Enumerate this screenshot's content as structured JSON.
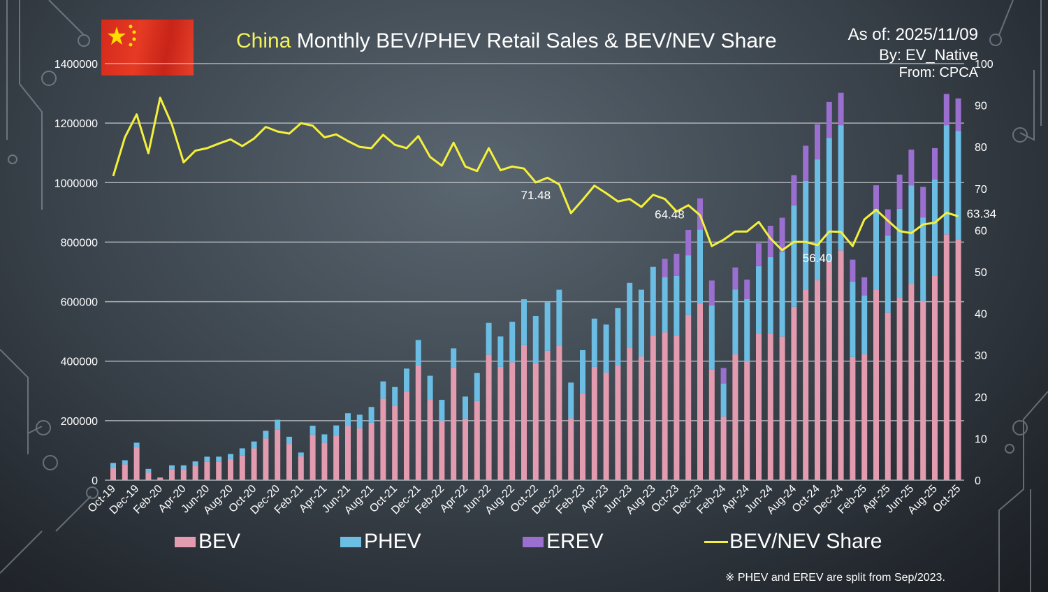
{
  "header": {
    "title_highlight": "China",
    "title_rest": " Monthly BEV/PHEV Retail Sales & BEV/NEV Share",
    "as_of": "As of: 2025/11/09",
    "by": "By: EV_Native",
    "from": "From: CPCA"
  },
  "flag": {
    "name": "china-flag"
  },
  "legend": {
    "bev": "BEV",
    "phev": "PHEV",
    "erev": "EREV",
    "share": "BEV/NEV Share"
  },
  "footnote": "※ PHEV and EREV are split from Sep/2023.",
  "colors": {
    "bev": "#e39bb0",
    "phev": "#6bbde3",
    "erev": "#9b6fd0",
    "share": "#f4f03c",
    "title_highlight": "#f2f25a"
  },
  "chart_data": {
    "type": "bar",
    "stacked": true,
    "title": "China Monthly BEV/PHEV Retail Sales & BEV/NEV Share",
    "left_axis": {
      "ylim": [
        0,
        1400000
      ],
      "ticks": [
        "0",
        "200000",
        "400000",
        "600000",
        "800000",
        "1000000",
        "1200000",
        "1400000"
      ]
    },
    "right_axis": {
      "ylim": [
        0,
        100
      ],
      "ticks": [
        "0",
        "10",
        "20",
        "30",
        "40",
        "50",
        "60",
        "70",
        "80",
        "90",
        "100"
      ]
    },
    "grid": true,
    "legend_position": "bottom",
    "categories": [
      "Oct-19",
      "Nov-19",
      "Dec-19",
      "Jan-20",
      "Feb-20",
      "Mar-20",
      "Apr-20",
      "May-20",
      "Jun-20",
      "Jul-20",
      "Aug-20",
      "Sep-20",
      "Oct-20",
      "Nov-20",
      "Dec-20",
      "Jan-21",
      "Feb-21",
      "Mar-21",
      "Apr-21",
      "May-21",
      "Jun-21",
      "Jul-21",
      "Aug-21",
      "Sep-21",
      "Oct-21",
      "Nov-21",
      "Dec-21",
      "Jan-22",
      "Feb-22",
      "Mar-22",
      "Apr-22",
      "May-22",
      "Jun-22",
      "Jul-22",
      "Aug-22",
      "Sep-22",
      "Oct-22",
      "Nov-22",
      "Dec-22",
      "Jan-23",
      "Feb-23",
      "Mar-23",
      "Apr-23",
      "May-23",
      "Jun-23",
      "Jul-23",
      "Aug-23",
      "Sep-23",
      "Oct-23",
      "Nov-23",
      "Dec-23",
      "Jan-24",
      "Feb-24",
      "Mar-24",
      "Apr-24",
      "May-24",
      "Jun-24",
      "Jul-24",
      "Aug-24",
      "Sep-24",
      "Oct-24",
      "Nov-24",
      "Dec-24",
      "Jan-25",
      "Feb-25",
      "Mar-25",
      "Apr-25",
      "May-25",
      "Jun-25",
      "Jul-25",
      "Aug-25",
      "Sep-25",
      "Oct-25"
    ],
    "series": [
      {
        "name": "BEV",
        "axis": "left",
        "values": [
          41000,
          53000,
          111000,
          26000,
          7000,
          37000,
          37000,
          47000,
          62000,
          62000,
          71000,
          84000,
          107000,
          140000,
          171000,
          122000,
          80000,
          153000,
          126000,
          150000,
          182000,
          174000,
          193000,
          274000,
          250000,
          297000,
          387000,
          270000,
          200000,
          379000,
          207000,
          266000,
          422000,
          381000,
          396000,
          454000,
          392000,
          435000,
          452000,
          208000,
          291000,
          381000,
          362000,
          387000,
          446000,
          416000,
          487000,
          497000,
          487000,
          555000,
          594000,
          373000,
          214000,
          423000,
          400000,
          493000,
          493000,
          483000,
          583000,
          640000,
          672000,
          735000,
          772000,
          414000,
          423000,
          641000,
          563000,
          613000,
          659000,
          602000,
          688000,
          826000,
          809000
        ]
      },
      {
        "name": "PHEV",
        "axis": "left",
        "values": [
          17000,
          14000,
          15000,
          12000,
          2000,
          13000,
          13000,
          16000,
          17000,
          17000,
          17000,
          23000,
          23000,
          26000,
          32000,
          24000,
          13000,
          30000,
          28000,
          34000,
          43000,
          46000,
          53000,
          58000,
          63000,
          78000,
          84000,
          81000,
          70000,
          64000,
          74000,
          94000,
          107000,
          102000,
          136000,
          154000,
          160000,
          163000,
          188000,
          120000,
          146000,
          162000,
          161000,
          191000,
          217000,
          224000,
          230000,
          186000,
          199000,
          201000,
          248000,
          214000,
          111000,
          218000,
          209000,
          226000,
          257000,
          284000,
          340000,
          366000,
          406000,
          415000,
          421000,
          253000,
          198000,
          271000,
          259000,
          299000,
          332000,
          281000,
          323000,
          367000,
          365000
        ]
      },
      {
        "name": "EREV",
        "axis": "left",
        "values": [
          null,
          null,
          null,
          null,
          null,
          null,
          null,
          null,
          null,
          null,
          null,
          null,
          null,
          null,
          null,
          null,
          null,
          null,
          null,
          null,
          null,
          null,
          null,
          null,
          null,
          null,
          null,
          null,
          null,
          null,
          null,
          null,
          null,
          null,
          null,
          null,
          null,
          null,
          null,
          null,
          null,
          null,
          null,
          null,
          null,
          null,
          null,
          61000,
          75000,
          85000,
          105000,
          84000,
          52000,
          74000,
          65000,
          77000,
          105000,
          115000,
          102000,
          118000,
          118000,
          121000,
          109000,
          74000,
          61000,
          79000,
          88000,
          115000,
          120000,
          103000,
          105000,
          105000,
          109000
        ]
      },
      {
        "name": "BEV/NEV Share",
        "axis": "right",
        "type": "line",
        "values": [
          73.0,
          82.3,
          87.8,
          78.5,
          91.8,
          85.4,
          76.3,
          79.1,
          79.7,
          80.8,
          81.8,
          80.2,
          82.0,
          84.8,
          83.7,
          83.2,
          85.7,
          85.1,
          82.3,
          83.0,
          81.4,
          80.0,
          79.7,
          82.9,
          80.5,
          79.7,
          82.6,
          77.6,
          75.5,
          81.0,
          75.3,
          74.2,
          79.7,
          74.4,
          75.3,
          74.8,
          71.48,
          72.6,
          71.0,
          64.1,
          67.3,
          70.7,
          68.9,
          66.9,
          67.5,
          65.6,
          68.5,
          67.5,
          64.48,
          66.0,
          63.6,
          56.2,
          57.7,
          59.7,
          59.7,
          62.0,
          58.0,
          55.2,
          57.2,
          57.2,
          56.4,
          59.7,
          59.6,
          56.2,
          62.6,
          64.9,
          62.3,
          59.8,
          59.3,
          61.4,
          61.8,
          64.2,
          63.34
        ]
      }
    ],
    "annotations": [
      {
        "category": "Oct-22",
        "text": "71.48"
      },
      {
        "category": "Oct-23",
        "text": "64.48"
      },
      {
        "category": "Oct-24",
        "text": "56.40"
      },
      {
        "category": "Oct-25",
        "text": "63.34"
      }
    ]
  }
}
